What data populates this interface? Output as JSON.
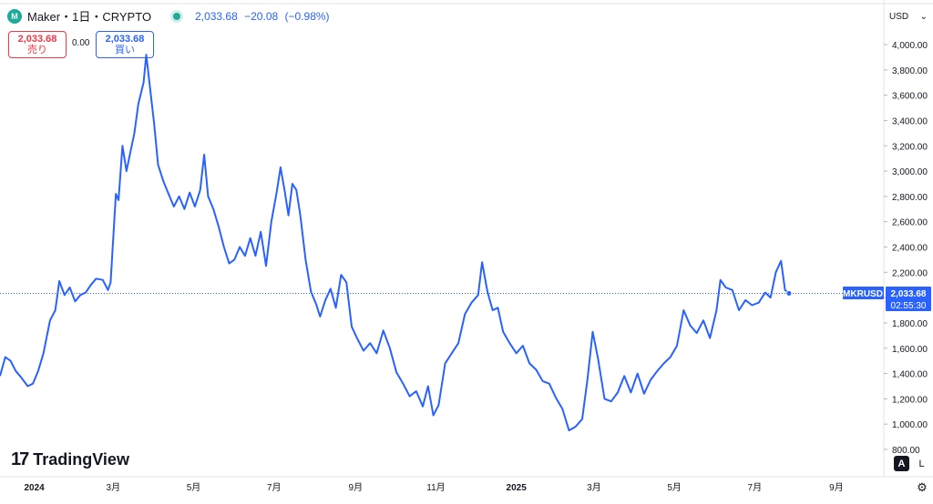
{
  "header": {
    "symbol_title": "Maker・1日・CRYPTO",
    "logo_text": "M",
    "last_price": "2,033.68",
    "change": "−20.08",
    "change_pct": "(−0.98%)"
  },
  "order": {
    "sell_price": "2,033.68",
    "sell_label": "売り",
    "spread": "0.00",
    "buy_price": "2,033.68",
    "buy_label": "買い"
  },
  "currency": "USD",
  "logo": {
    "mark": "17",
    "name": "TradingView"
  },
  "buttons": {
    "auto": "A",
    "log": "L"
  },
  "price_label": {
    "symbol": "MKRUSD",
    "price": "2,033.68",
    "countdown": "02:55:30"
  },
  "colors": {
    "line": "#2962ff",
    "label_bg": "#2962ff",
    "sell": "#f23645",
    "buy": "#2962ff"
  },
  "chart_data": {
    "type": "line",
    "ylim": [
      800,
      4000
    ],
    "yticks": [
      {
        "v": 800,
        "label": "800.00"
      },
      {
        "v": 1000,
        "label": "1,000.00"
      },
      {
        "v": 1200,
        "label": "1,200.00"
      },
      {
        "v": 1400,
        "label": "1,400.00"
      },
      {
        "v": 1600,
        "label": "1,600.00"
      },
      {
        "v": 1800,
        "label": "1,800.00"
      },
      {
        "v": 2000,
        "label": "2,000.00"
      },
      {
        "v": 2200,
        "label": "2,200.00"
      },
      {
        "v": 2400,
        "label": "2,400.00"
      },
      {
        "v": 2600,
        "label": "2,600.00"
      },
      {
        "v": 2800,
        "label": "2,800.00"
      },
      {
        "v": 3000,
        "label": "3,000.00"
      },
      {
        "v": 3200,
        "label": "3,200.00"
      },
      {
        "v": 3400,
        "label": "3,400.00"
      },
      {
        "v": 3600,
        "label": "3,600.00"
      },
      {
        "v": 3800,
        "label": "3,800.00"
      },
      {
        "v": 4000,
        "label": "4,000.00"
      }
    ],
    "xlim": [
      "2023-12-06",
      "2025-10-07"
    ],
    "xticks": [
      {
        "date": "2024-01-01",
        "label": "2024",
        "bold": true
      },
      {
        "date": "2024-03-01",
        "label": "3月",
        "bold": false
      },
      {
        "date": "2024-05-01",
        "label": "5月",
        "bold": false
      },
      {
        "date": "2024-07-01",
        "label": "7月",
        "bold": false
      },
      {
        "date": "2024-09-01",
        "label": "9月",
        "bold": false
      },
      {
        "date": "2024-11-01",
        "label": "11月",
        "bold": false
      },
      {
        "date": "2025-01-01",
        "label": "2025",
        "bold": true
      },
      {
        "date": "2025-03-01",
        "label": "3月",
        "bold": false
      },
      {
        "date": "2025-05-01",
        "label": "5月",
        "bold": false
      },
      {
        "date": "2025-07-01",
        "label": "7月",
        "bold": false
      },
      {
        "date": "2025-09-01",
        "label": "9月",
        "bold": false
      }
    ],
    "last_value": 2033.68,
    "series": [
      {
        "points": [
          [
            "2023-12-06",
            1380
          ],
          [
            "2023-12-10",
            1530
          ],
          [
            "2023-12-14",
            1500
          ],
          [
            "2023-12-18",
            1420
          ],
          [
            "2023-12-22",
            1370
          ],
          [
            "2023-12-27",
            1300
          ],
          [
            "2023-12-31",
            1320
          ],
          [
            "2024-01-04",
            1420
          ],
          [
            "2024-01-08",
            1560
          ],
          [
            "2024-01-13",
            1820
          ],
          [
            "2024-01-17",
            1900
          ],
          [
            "2024-01-20",
            2130
          ],
          [
            "2024-01-24",
            2020
          ],
          [
            "2024-01-28",
            2080
          ],
          [
            "2024-02-01",
            1970
          ],
          [
            "2024-02-05",
            2020
          ],
          [
            "2024-02-09",
            2040
          ],
          [
            "2024-02-13",
            2100
          ],
          [
            "2024-02-17",
            2150
          ],
          [
            "2024-02-22",
            2140
          ],
          [
            "2024-02-26",
            2060
          ],
          [
            "2024-02-28",
            2120
          ],
          [
            "2024-03-03",
            2820
          ],
          [
            "2024-03-05",
            2770
          ],
          [
            "2024-03-08",
            3200
          ],
          [
            "2024-03-11",
            3000
          ],
          [
            "2024-03-14",
            3150
          ],
          [
            "2024-03-17",
            3300
          ],
          [
            "2024-03-20",
            3530
          ],
          [
            "2024-03-24",
            3700
          ],
          [
            "2024-03-26",
            3920
          ],
          [
            "2024-03-29",
            3650
          ],
          [
            "2024-04-01",
            3380
          ],
          [
            "2024-04-04",
            3050
          ],
          [
            "2024-04-08",
            2920
          ],
          [
            "2024-04-12",
            2820
          ],
          [
            "2024-04-16",
            2720
          ],
          [
            "2024-04-20",
            2800
          ],
          [
            "2024-04-24",
            2700
          ],
          [
            "2024-04-28",
            2830
          ],
          [
            "2024-05-02",
            2720
          ],
          [
            "2024-05-06",
            2850
          ],
          [
            "2024-05-09",
            3130
          ],
          [
            "2024-05-12",
            2800
          ],
          [
            "2024-05-16",
            2700
          ],
          [
            "2024-05-20",
            2560
          ],
          [
            "2024-05-24",
            2400
          ],
          [
            "2024-05-28",
            2270
          ],
          [
            "2024-06-01",
            2300
          ],
          [
            "2024-06-05",
            2400
          ],
          [
            "2024-06-09",
            2330
          ],
          [
            "2024-06-13",
            2470
          ],
          [
            "2024-06-17",
            2330
          ],
          [
            "2024-06-21",
            2520
          ],
          [
            "2024-06-25",
            2250
          ],
          [
            "2024-06-29",
            2600
          ],
          [
            "2024-07-03",
            2830
          ],
          [
            "2024-07-06",
            3030
          ],
          [
            "2024-07-09",
            2850
          ],
          [
            "2024-07-12",
            2650
          ],
          [
            "2024-07-15",
            2900
          ],
          [
            "2024-07-18",
            2850
          ],
          [
            "2024-07-21",
            2650
          ],
          [
            "2024-07-25",
            2300
          ],
          [
            "2024-07-29",
            2050
          ],
          [
            "2024-08-02",
            1950
          ],
          [
            "2024-08-05",
            1850
          ],
          [
            "2024-08-09",
            1980
          ],
          [
            "2024-08-13",
            2070
          ],
          [
            "2024-08-17",
            1920
          ],
          [
            "2024-08-21",
            2180
          ],
          [
            "2024-08-25",
            2120
          ],
          [
            "2024-08-29",
            1770
          ],
          [
            "2024-09-02",
            1680
          ],
          [
            "2024-09-07",
            1580
          ],
          [
            "2024-09-12",
            1640
          ],
          [
            "2024-09-17",
            1560
          ],
          [
            "2024-09-22",
            1740
          ],
          [
            "2024-09-27",
            1600
          ],
          [
            "2024-10-02",
            1410
          ],
          [
            "2024-10-07",
            1320
          ],
          [
            "2024-10-12",
            1220
          ],
          [
            "2024-10-17",
            1260
          ],
          [
            "2024-10-22",
            1140
          ],
          [
            "2024-10-26",
            1300
          ],
          [
            "2024-10-30",
            1070
          ],
          [
            "2024-11-03",
            1150
          ],
          [
            "2024-11-08",
            1480
          ],
          [
            "2024-11-13",
            1560
          ],
          [
            "2024-11-18",
            1640
          ],
          [
            "2024-11-23",
            1870
          ],
          [
            "2024-11-28",
            1960
          ],
          [
            "2024-12-03",
            2020
          ],
          [
            "2024-12-06",
            2280
          ],
          [
            "2024-12-10",
            2050
          ],
          [
            "2024-12-14",
            1900
          ],
          [
            "2024-12-18",
            1920
          ],
          [
            "2024-12-22",
            1730
          ],
          [
            "2024-12-27",
            1640
          ],
          [
            "2025-01-01",
            1560
          ],
          [
            "2025-01-06",
            1620
          ],
          [
            "2025-01-11",
            1480
          ],
          [
            "2025-01-16",
            1430
          ],
          [
            "2025-01-21",
            1340
          ],
          [
            "2025-01-26",
            1320
          ],
          [
            "2025-01-31",
            1210
          ],
          [
            "2025-02-05",
            1120
          ],
          [
            "2025-02-10",
            950
          ],
          [
            "2025-02-15",
            980
          ],
          [
            "2025-02-20",
            1040
          ],
          [
            "2025-02-24",
            1350
          ],
          [
            "2025-02-28",
            1730
          ],
          [
            "2025-03-04",
            1520
          ],
          [
            "2025-03-09",
            1200
          ],
          [
            "2025-03-14",
            1180
          ],
          [
            "2025-03-19",
            1250
          ],
          [
            "2025-03-24",
            1380
          ],
          [
            "2025-03-29",
            1250
          ],
          [
            "2025-04-03",
            1400
          ],
          [
            "2025-04-08",
            1240
          ],
          [
            "2025-04-13",
            1350
          ],
          [
            "2025-04-18",
            1420
          ],
          [
            "2025-04-23",
            1480
          ],
          [
            "2025-04-28",
            1530
          ],
          [
            "2025-05-03",
            1620
          ],
          [
            "2025-05-08",
            1900
          ],
          [
            "2025-05-13",
            1780
          ],
          [
            "2025-05-18",
            1720
          ],
          [
            "2025-05-23",
            1820
          ],
          [
            "2025-05-28",
            1680
          ],
          [
            "2025-06-02",
            1900
          ],
          [
            "2025-06-05",
            2140
          ],
          [
            "2025-06-09",
            2080
          ],
          [
            "2025-06-14",
            2060
          ],
          [
            "2025-06-19",
            1900
          ],
          [
            "2025-06-24",
            1980
          ],
          [
            "2025-06-29",
            1940
          ],
          [
            "2025-07-04",
            1960
          ],
          [
            "2025-07-09",
            2040
          ],
          [
            "2025-07-13",
            2000
          ],
          [
            "2025-07-17",
            2200
          ],
          [
            "2025-07-21",
            2290
          ],
          [
            "2025-07-24",
            2060
          ],
          [
            "2025-07-27",
            2033.68
          ]
        ]
      }
    ]
  }
}
